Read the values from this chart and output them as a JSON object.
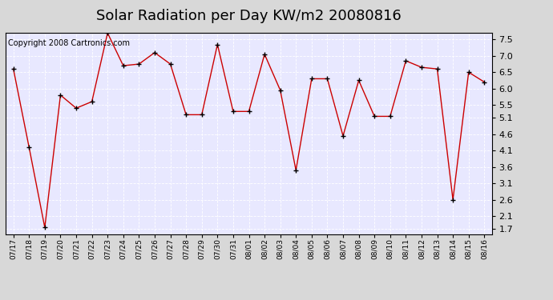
{
  "title": "Solar Radiation per Day KW/m2 20080816",
  "copyright_text": "Copyright 2008 Cartronics.com",
  "dates": [
    "07/17",
    "07/18",
    "07/19",
    "07/20",
    "07/21",
    "07/22",
    "07/23",
    "07/24",
    "07/25",
    "07/26",
    "07/27",
    "07/28",
    "07/29",
    "07/30",
    "07/31",
    "08/01",
    "08/02",
    "08/03",
    "08/04",
    "08/05",
    "08/06",
    "08/07",
    "08/08",
    "08/09",
    "08/10",
    "08/11",
    "08/12",
    "08/13",
    "08/14",
    "08/15",
    "08/16"
  ],
  "values": [
    6.6,
    4.2,
    1.75,
    5.8,
    5.4,
    5.6,
    7.7,
    6.7,
    6.75,
    7.1,
    6.75,
    5.2,
    5.2,
    7.35,
    5.3,
    5.3,
    7.05,
    5.95,
    3.5,
    6.3,
    6.3,
    4.55,
    6.25,
    5.15,
    5.15,
    6.85,
    6.65,
    6.6,
    2.6,
    6.5,
    6.2
  ],
  "line_color": "#cc0000",
  "marker_color": "#000000",
  "bg_color": "#d8d8d8",
  "plot_bg_color": "#e8e8ff",
  "grid_color": "#ffffff",
  "yticks": [
    1.7,
    2.1,
    2.6,
    3.1,
    3.6,
    4.1,
    4.6,
    5.1,
    5.5,
    6.0,
    6.5,
    7.0,
    7.5
  ],
  "ylim": [
    1.55,
    7.7
  ],
  "title_fontsize": 13,
  "copyright_fontsize": 7,
  "xtick_fontsize": 6.5,
  "ytick_fontsize": 8
}
